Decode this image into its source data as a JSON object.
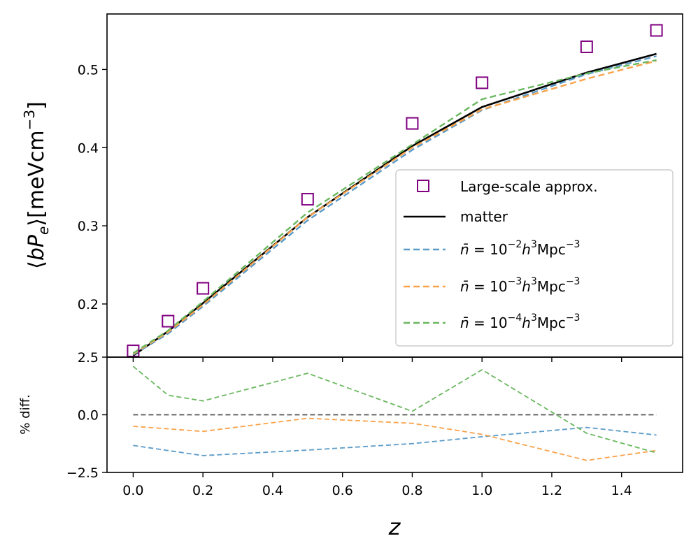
{
  "chart_data": [
    {
      "type": "line",
      "panel": "main",
      "title": "",
      "xlabel": "",
      "ylabel": "⟨bP_e⟩[meVcm⁻³]",
      "xlim": [
        -0.075,
        1.575
      ],
      "ylim": [
        0.132,
        0.571
      ],
      "x_ticks": [
        0.0,
        0.2,
        0.4,
        0.6,
        0.8,
        1.0,
        1.2,
        1.4
      ],
      "y_ticks": [
        0.2,
        0.3,
        0.4,
        0.5
      ],
      "y_tick_labels": [
        "0.2",
        "0.3",
        "0.4",
        "0.5"
      ],
      "legend_position": "lower-right",
      "series": [
        {
          "name": "Large-scale approx.",
          "style": "square-markers",
          "color": "#800080",
          "x": [
            0.0,
            0.1,
            0.2,
            0.5,
            0.8,
            1.0,
            1.3,
            1.5
          ],
          "values": [
            0.14,
            0.178,
            0.22,
            0.334,
            0.431,
            0.483,
            0.529,
            0.55
          ]
        },
        {
          "name": "matter",
          "style": "solid",
          "color": "#000000",
          "x": [
            0.0,
            0.1,
            0.2,
            0.5,
            0.8,
            1.0,
            1.3,
            1.5
          ],
          "values": [
            0.134,
            0.165,
            0.201,
            0.311,
            0.402,
            0.452,
            0.496,
            0.52
          ]
        },
        {
          "name": "n̄ = 10⁻² h³Mpc⁻³",
          "label_parts": {
            "base": "10",
            "exp": "−2"
          },
          "style": "dashed",
          "color": "#5b9bc8",
          "x": [
            0.0,
            0.1,
            0.2,
            0.5,
            0.8,
            1.0,
            1.3,
            1.5
          ],
          "values": [
            0.135,
            0.162,
            0.197,
            0.307,
            0.397,
            0.448,
            0.494,
            0.517
          ]
        },
        {
          "name": "n̄ = 10⁻³ h³Mpc⁻³",
          "label_parts": {
            "base": "10",
            "exp": "−3"
          },
          "style": "dashed",
          "color": "#f9a34a",
          "x": [
            0.0,
            0.1,
            0.2,
            0.5,
            0.8,
            1.0,
            1.3,
            1.5
          ],
          "values": [
            0.136,
            0.164,
            0.199,
            0.311,
            0.4,
            0.449,
            0.488,
            0.511
          ]
        },
        {
          "name": "n̄ = 10⁻⁴ h³Mpc⁻³",
          "label_parts": {
            "base": "10",
            "exp": "−4"
          },
          "style": "dashed",
          "color": "#6ab85f",
          "x": [
            0.0,
            0.1,
            0.2,
            0.5,
            0.8,
            1.0,
            1.3,
            1.5
          ],
          "values": [
            0.137,
            0.166,
            0.203,
            0.317,
            0.404,
            0.462,
            0.495,
            0.512
          ]
        }
      ]
    },
    {
      "type": "line",
      "panel": "residual",
      "title": "",
      "xlabel": "z",
      "ylabel": "% diff.",
      "xlim": [
        -0.075,
        1.575
      ],
      "ylim": [
        -2.5,
        2.5
      ],
      "x_ticks": [
        0.0,
        0.2,
        0.4,
        0.6,
        0.8,
        1.0,
        1.2,
        1.4
      ],
      "x_tick_labels": [
        "0.0",
        "0.2",
        "0.4",
        "0.6",
        "0.8",
        "1.0",
        "1.2",
        "1.4"
      ],
      "y_ticks": [
        -2.5,
        0.0,
        2.5
      ],
      "y_tick_labels": [
        "−2.5",
        "0.0",
        "2.5"
      ],
      "series": [
        {
          "name": "reference",
          "style": "dashed",
          "color": "#555555",
          "x": [
            0.0,
            1.5
          ],
          "values": [
            0.0,
            0.0
          ]
        },
        {
          "name": "n̄ = 10⁻² h³Mpc⁻³",
          "style": "dashed",
          "color": "#5b9bc8",
          "x": [
            0.0,
            0.2,
            0.5,
            0.8,
            1.0,
            1.3,
            1.5
          ],
          "values": [
            -1.33,
            -1.77,
            -1.53,
            -1.25,
            -0.95,
            -0.55,
            -0.88
          ]
        },
        {
          "name": "n̄ = 10⁻³ h³Mpc⁻³",
          "style": "dashed",
          "color": "#f9a34a",
          "x": [
            0.0,
            0.2,
            0.5,
            0.8,
            1.0,
            1.3,
            1.5
          ],
          "values": [
            -0.5,
            -0.72,
            -0.15,
            -0.37,
            -0.85,
            -1.98,
            -1.55
          ]
        },
        {
          "name": "n̄ = 10⁻⁴ h³Mpc⁻³",
          "style": "dashed",
          "color": "#6ab85f",
          "x": [
            0.0,
            0.1,
            0.2,
            0.5,
            0.8,
            1.0,
            1.3,
            1.5
          ],
          "values": [
            2.1,
            0.85,
            0.6,
            1.8,
            0.15,
            1.95,
            -0.8,
            -1.65
          ]
        }
      ]
    }
  ]
}
